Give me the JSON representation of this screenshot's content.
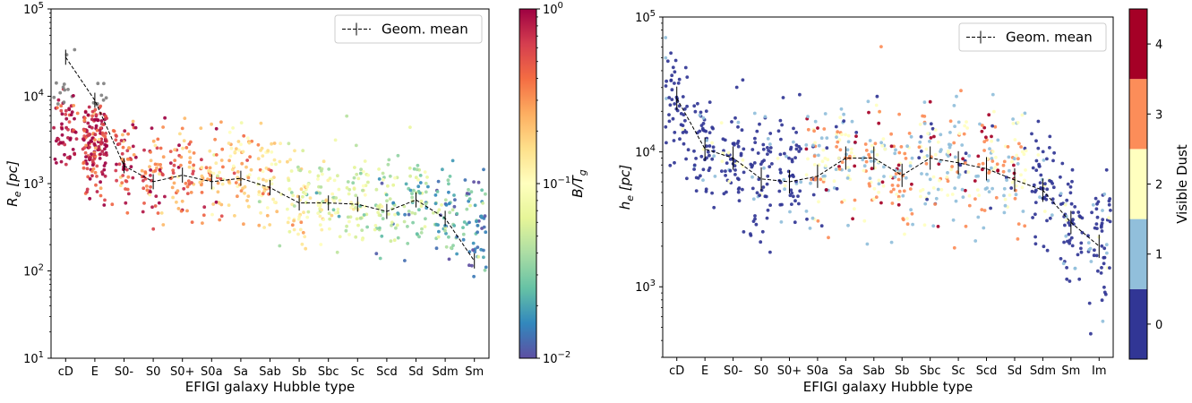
{
  "chart_data": [
    {
      "type": "scatter",
      "categories": [
        "cD",
        "E",
        "S0-",
        "S0",
        "S0+",
        "S0a",
        "Sa",
        "Sab",
        "Sb",
        "Sbc",
        "Sc",
        "Scd",
        "Sd",
        "Sdm",
        "Sm"
      ],
      "xlabel": "EFIGI galaxy Hubble type",
      "ylabel": "R_e [pc]",
      "ylabel_main": "R",
      "ylabel_sub": "e",
      "ylabel_rest": " [pc]",
      "yscale": "log",
      "ylim": [
        10,
        100000
      ],
      "ytick_labels": [
        {
          "base": "10",
          "exp": "1"
        },
        {
          "base": "10",
          "exp": "2"
        },
        {
          "base": "10",
          "exp": "3"
        },
        {
          "base": "10",
          "exp": "4"
        },
        {
          "base": "10",
          "exp": "5"
        }
      ],
      "series": [
        {
          "name": "Geom. mean",
          "style": "dashed-line-errorbars",
          "color": "#000000",
          "values": [
            28000,
            9000,
            1600,
            1050,
            1250,
            1050,
            1150,
            900,
            600,
            600,
            580,
            480,
            650,
            400,
            130
          ]
        }
      ],
      "scatter_medians": [
        5000,
        3000,
        1900,
        1300,
        1400,
        1350,
        1500,
        1000,
        700,
        650,
        650,
        500,
        600,
        500,
        400
      ],
      "legend": {
        "label": "Geom. mean",
        "location": "upper right"
      },
      "colorbar": {
        "label_main": "B/T",
        "label_sub": "g",
        "scale": "log",
        "range": [
          0.01,
          1
        ],
        "colormap": [
          "#5e4fa2",
          "#3288bd",
          "#66c2a5",
          "#abdda4",
          "#e6f598",
          "#ffffbf",
          "#fee08b",
          "#fdae61",
          "#f46d43",
          "#d53e4f",
          "#9e0142"
        ],
        "tick_labels": [
          {
            "base": "10",
            "exp": "0"
          },
          {
            "base": "10",
            "exp": "−1"
          },
          {
            "base": "10",
            "exp": "−2"
          }
        ]
      }
    },
    {
      "type": "scatter",
      "categories": [
        "cD",
        "E",
        "S0-",
        "S0",
        "S0+",
        "S0a",
        "Sa",
        "Sab",
        "Sb",
        "Sbc",
        "Sc",
        "Scd",
        "Sd",
        "Sdm",
        "Sm",
        "Im"
      ],
      "xlabel": "EFIGI galaxy Hubble type",
      "ylabel": "h_e [pc]",
      "ylabel_main": "h",
      "ylabel_sub": "e",
      "ylabel_rest": " [pc]",
      "yscale": "log",
      "ylim": [
        300,
        100000
      ],
      "ytick_labels": [
        {
          "base": "10",
          "exp": "3"
        },
        {
          "base": "10",
          "exp": "4"
        },
        {
          "base": "10",
          "exp": "5"
        }
      ],
      "series": [
        {
          "name": "Geom. mean",
          "style": "dashed-line-errorbars",
          "color": "#000000",
          "values": [
            25000,
            10500,
            9000,
            6300,
            6000,
            6600,
            9000,
            9000,
            6700,
            9000,
            8300,
            7500,
            6200,
            5200,
            3000,
            2000
          ]
        }
      ],
      "scatter_medians": [
        20000,
        11000,
        9000,
        7000,
        7000,
        7500,
        9500,
        9000,
        6500,
        9000,
        8000,
        8000,
        7000,
        5500,
        3000,
        2200
      ],
      "legend": {
        "label": "Geom. mean",
        "location": "upper right"
      },
      "colorbar": {
        "label": "Visible Dust",
        "type": "discrete",
        "levels": [
          0,
          1,
          2,
          3,
          4
        ],
        "tick_labels": [
          "0",
          "1",
          "2",
          "3",
          "4"
        ],
        "colors": [
          "#313695",
          "#91bfdb",
          "#ffffbf",
          "#fc8d59",
          "#a50026"
        ]
      }
    }
  ]
}
